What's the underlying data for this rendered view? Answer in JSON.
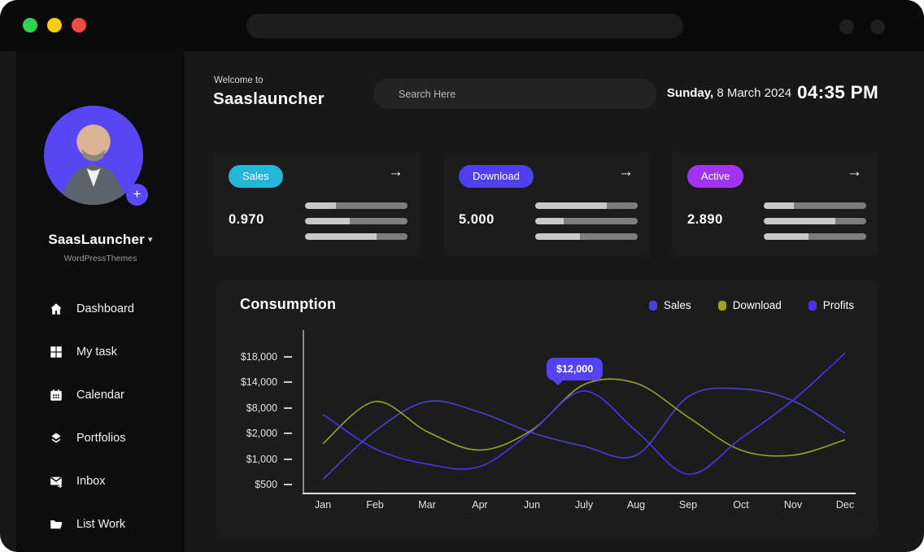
{
  "window": {
    "traffic_lights": [
      {
        "name": "close",
        "color": "#2fd152"
      },
      {
        "name": "minimize",
        "color": "#fccc05"
      },
      {
        "name": "zoom",
        "color": "#ef4b45"
      }
    ]
  },
  "sidebar": {
    "profile": {
      "name": "SaasLauncher",
      "subtitle": "WordPressThemes",
      "add_label": "+"
    },
    "items": [
      {
        "label": "Dashboard",
        "icon": "home-icon"
      },
      {
        "label": "My task",
        "icon": "grid-icon"
      },
      {
        "label": "Calendar",
        "icon": "calendar-icon"
      },
      {
        "label": "Portfolios",
        "icon": "layers-icon"
      },
      {
        "label": "Inbox",
        "icon": "inbox-icon"
      },
      {
        "label": "List Work",
        "icon": "folder-icon"
      }
    ]
  },
  "header": {
    "welcome": "Welcome to",
    "title": "Saaslauncher",
    "search_placeholder": "Search Here",
    "date_day": "Sunday,",
    "date": " 8 March 2024",
    "time": "04:35 PM"
  },
  "stats": [
    {
      "badge": "Sales",
      "badge_color": "#26b6d7",
      "value": "0.970",
      "arrow": "→",
      "bars": [
        30,
        44,
        70
      ]
    },
    {
      "badge": "Download",
      "badge_color": "#4e3ff0",
      "value": "5.000",
      "arrow": "→",
      "bars": [
        70,
        28,
        44
      ]
    },
    {
      "badge": "Active",
      "badge_color": "#a233f2",
      "value": "2.890",
      "arrow": "→",
      "bars": [
        29,
        70,
        44
      ]
    }
  ],
  "chart_data": {
    "type": "line",
    "title": "Consumption",
    "categories": [
      "Jan",
      "Feb",
      "Mar",
      "Apr",
      "Jun",
      "July",
      "Aug",
      "Sep",
      "Oct",
      "Nov",
      "Dec"
    ],
    "y_tick_labels": [
      "$18,000",
      "$14,000",
      "$8,000",
      "$2,000",
      "$1,000",
      "$500"
    ],
    "y_tick_values": [
      18000,
      14000,
      8000,
      2000,
      1000,
      500
    ],
    "y_axis_note": "non-linear scale, ticks equally spaced",
    "grid": false,
    "legend_position": "top-right",
    "series": [
      {
        "name": "Sales",
        "color": "#4843d8",
        "values": [
          600,
          2600,
          9500,
          7000,
          2200,
          1500,
          1150,
          10700,
          12500,
          9700,
          2050
        ]
      },
      {
        "name": "Download",
        "color": "#99a51f",
        "values": [
          1600,
          9500,
          2400,
          1350,
          2800,
          13500,
          13800,
          5800,
          1350,
          1150,
          1750
        ]
      },
      {
        "name": "Profits",
        "color": "#4b33f3",
        "values": [
          6500,
          1400,
          900,
          850,
          2500,
          12000,
          2600,
          700,
          1800,
          9800,
          18600
        ]
      }
    ],
    "tooltip": {
      "label": "$12,000",
      "series": "Profits",
      "category": "July",
      "color": "#5542f4"
    }
  }
}
